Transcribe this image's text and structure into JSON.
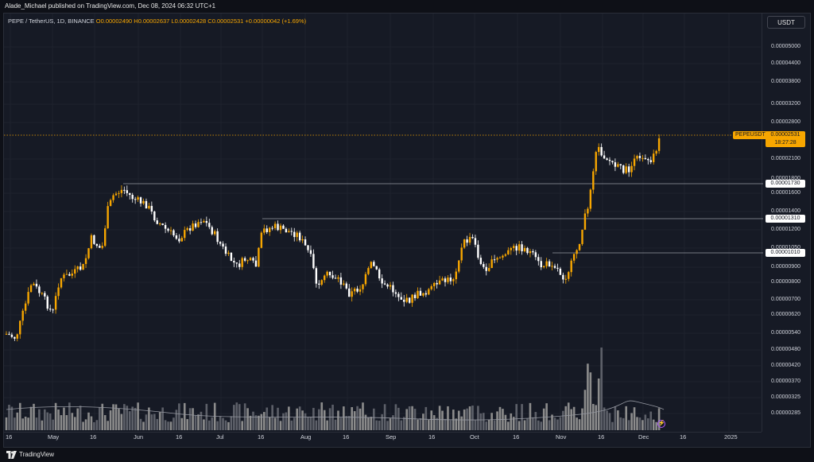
{
  "header": {
    "publisher_line": "Alade_Michael published on TradingView.com, Dec 08, 2024 06:32 UTC+1"
  },
  "legend": {
    "symbol_line": "PEPE / TetherUS, 1D, BINANCE",
    "ohlc_line": "O0.00002490 H0.00002637 L0.00002428 C0.00002531 +0.00000042 (+1.69%)"
  },
  "currency_button": "USDT",
  "price_axis": {
    "labels": [
      "0.00005000",
      "0.00004400",
      "0.00003800",
      "0.00003200",
      "0.00002800",
      "0.00002100",
      "0.00001800",
      "0.00001600",
      "0.00001400",
      "0.00001200",
      "0.00001050",
      "0.00000900",
      "0.00000800",
      "0.00000700",
      "0.00000620",
      "0.00000540",
      "0.00000480",
      "0.00000420",
      "0.00000370",
      "0.00000325",
      "0.00000285"
    ]
  },
  "levels": {
    "level1": "0.00001730",
    "level2": "0.00001310",
    "level3": "0.00001010"
  },
  "current_price": {
    "pair": "PEPEUSDT",
    "price": "0.00002531",
    "countdown": "18:27:28"
  },
  "time_axis": {
    "labels": [
      "16",
      "May",
      "16",
      "Jun",
      "16",
      "Jul",
      "16",
      "Aug",
      "16",
      "Sep",
      "16",
      "Oct",
      "16",
      "Nov",
      "16",
      "Dec",
      "16",
      "2025"
    ]
  },
  "footer": {
    "brand": "TradingView"
  },
  "colors": {
    "up": "#f7a600",
    "down": "#ffffff",
    "background": "#161a25",
    "accent": "#f7a600",
    "volume_up": "#8c8c8c",
    "volume_down": "#5d6069"
  },
  "icons": {
    "logo": "tradingview-logo-icon",
    "bolt": "lightning-icon"
  }
}
